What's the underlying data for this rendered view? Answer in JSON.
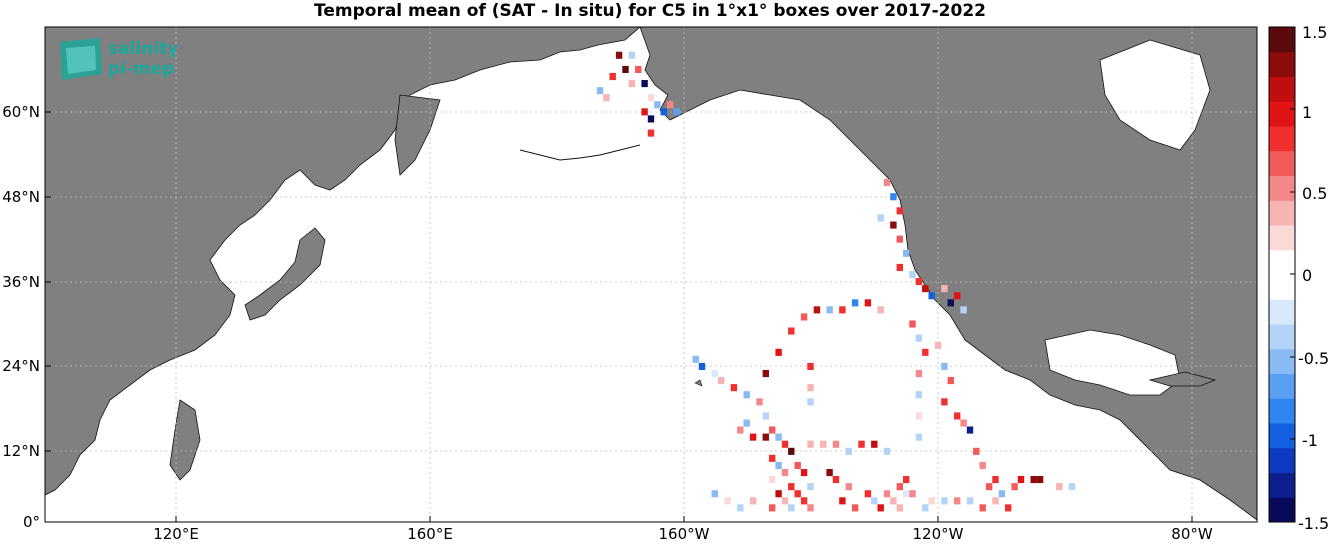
{
  "title": "Temporal mean of (SAT - In situ) for C5 in 1°x1° boxes over 2017-2022",
  "logo": {
    "line1": "salinity",
    "line2": "pi-mep"
  },
  "axes": {
    "x_ticks": [
      "120°E",
      "160°E",
      "160°W",
      "120°W",
      "80°W"
    ],
    "y_ticks": [
      "0°",
      "12°N",
      "24°N",
      "36°N",
      "48°N",
      "60°N"
    ]
  },
  "colorbar": {
    "ticks": [
      "1.5",
      "1",
      "0.5",
      "0",
      "-0.5",
      "-1",
      "-1.5"
    ],
    "range": [
      -1.5,
      1.5
    ],
    "colors": [
      "#0a0a5a",
      "#0c1f8c",
      "#0d3ac0",
      "#1460e0",
      "#2f86f0",
      "#5aa0f2",
      "#88bbf4",
      "#b3d3f8",
      "#d9e8fb",
      "#ffffff",
      "#ffffff",
      "#fbd9d9",
      "#f8b3b3",
      "#f48888",
      "#f25a5a",
      "#f02f2f",
      "#e01414",
      "#c00d0d",
      "#8c0c0c",
      "#5a0a0a"
    ]
  },
  "colors": {
    "land": "#808080",
    "ocean": "#ffffff",
    "grid": "#bbbbbb"
  },
  "chart_data": {
    "type": "heatmap",
    "title": "Temporal mean of (SAT - In situ) for C5 in 1°x1° boxes over 2017-2022",
    "lon_range": [
      100,
      -70
    ],
    "lat_range": [
      0,
      70
    ],
    "value_range": [
      -1.5,
      1.5
    ],
    "cells": [
      [
        -170,
        66,
        1.2
      ],
      [
        -168,
        66,
        -0.3
      ],
      [
        -169,
        64,
        1.4
      ],
      [
        -167,
        64,
        0.6
      ],
      [
        -171,
        63,
        0.9
      ],
      [
        -166,
        62,
        -1.5
      ],
      [
        -168,
        62,
        0.4
      ],
      [
        -173,
        61,
        -0.6
      ],
      [
        -172,
        60,
        0.3
      ],
      [
        -165,
        60,
        0.2
      ],
      [
        -164,
        59,
        -0.5
      ],
      [
        -163,
        58,
        -1.0
      ],
      [
        -166,
        58,
        1.0
      ],
      [
        -165,
        57,
        -1.4
      ],
      [
        -162,
        59,
        0.5
      ],
      [
        -161,
        58,
        -0.7
      ],
      [
        -165,
        55,
        0.8
      ],
      [
        -128,
        48,
        0.5
      ],
      [
        -127,
        46,
        -0.8
      ],
      [
        -126,
        44,
        0.9
      ],
      [
        -129,
        43,
        -0.4
      ],
      [
        -127,
        42,
        1.3
      ],
      [
        -126,
        40,
        0.6
      ],
      [
        -125,
        38,
        -0.5
      ],
      [
        -126,
        36,
        0.8
      ],
      [
        -124,
        35,
        -0.3
      ],
      [
        -123,
        34,
        0.9
      ],
      [
        -122,
        33,
        1.1
      ],
      [
        -121,
        32,
        -0.9
      ],
      [
        -119,
        33,
        0.4
      ],
      [
        -118,
        31,
        -1.4
      ],
      [
        -117,
        32,
        1.0
      ],
      [
        -116,
        30,
        -0.4
      ],
      [
        -141,
        29,
        0.7
      ],
      [
        -139,
        30,
        1.1
      ],
      [
        -137,
        30,
        -0.5
      ],
      [
        -135,
        30,
        0.9
      ],
      [
        -133,
        31,
        -0.8
      ],
      [
        -131,
        31,
        1.0
      ],
      [
        -129,
        30,
        0.3
      ],
      [
        -143,
        27,
        0.8
      ],
      [
        -145,
        24,
        1.0
      ],
      [
        -147,
        21,
        1.3
      ],
      [
        -140,
        22,
        0.9
      ],
      [
        -140,
        19,
        0.4
      ],
      [
        -140,
        17,
        -0.3
      ],
      [
        -124,
        28,
        0.6
      ],
      [
        -123,
        26,
        -0.4
      ],
      [
        -122,
        24,
        0.8
      ],
      [
        -123,
        21,
        0.5
      ],
      [
        -123,
        18,
        -0.3
      ],
      [
        -123,
        15,
        0.2
      ],
      [
        -123,
        12,
        -0.4
      ],
      [
        -120,
        25,
        0.3
      ],
      [
        -119,
        22,
        -0.5
      ],
      [
        -118,
        20,
        0.6
      ],
      [
        -119,
        17,
        0.8
      ],
      [
        -117,
        15,
        0.9
      ],
      [
        -116,
        14,
        0.5
      ],
      [
        -115,
        13,
        -1.3
      ],
      [
        -114,
        10,
        0.6
      ],
      [
        -113,
        8,
        0.5
      ],
      [
        -158,
        23,
        -0.5
      ],
      [
        -157,
        22,
        -0.9
      ],
      [
        -155,
        21,
        -0.2
      ],
      [
        -154,
        20,
        0.4
      ],
      [
        -152,
        19,
        0.8
      ],
      [
        -150,
        18,
        -0.6
      ],
      [
        -148,
        17,
        0.5
      ],
      [
        -147,
        15,
        -0.4
      ],
      [
        -146,
        13,
        0.7
      ],
      [
        -147,
        12,
        1.2
      ],
      [
        -145,
        12,
        -0.5
      ],
      [
        -144,
        11,
        0.9
      ],
      [
        -143,
        10,
        1.4
      ],
      [
        -150,
        14,
        -0.6
      ],
      [
        -151,
        13,
        0.5
      ],
      [
        -149,
        12,
        1.0
      ],
      [
        -146,
        9,
        0.8
      ],
      [
        -145,
        8,
        -0.5
      ],
      [
        -144,
        7,
        0.5
      ],
      [
        -146,
        6,
        0.2
      ],
      [
        -143,
        5,
        0.9
      ],
      [
        -145,
        4,
        1.1
      ],
      [
        -144,
        3,
        0.4
      ],
      [
        -146,
        2,
        0.7
      ],
      [
        -142,
        8,
        0.6
      ],
      [
        -141,
        7,
        1.0
      ],
      [
        -140,
        5,
        -0.3
      ],
      [
        -142,
        4,
        0.8
      ],
      [
        -141,
        3,
        0.9
      ],
      [
        -143,
        2,
        -0.4
      ],
      [
        -140,
        2,
        0.5
      ],
      [
        -140,
        11,
        0.4
      ],
      [
        -138,
        11,
        0.3
      ],
      [
        -136,
        11,
        0.5
      ],
      [
        -134,
        10,
        -0.3
      ],
      [
        -132,
        11,
        0.9
      ],
      [
        -130,
        11,
        1.1
      ],
      [
        -128,
        10,
        -0.4
      ],
      [
        -136,
        6,
        0.9
      ],
      [
        -134,
        5,
        0.5
      ],
      [
        -135,
        3,
        1.0
      ],
      [
        -133,
        2,
        0.7
      ],
      [
        -131,
        4,
        0.8
      ],
      [
        -130,
        3,
        -0.4
      ],
      [
        -128,
        4,
        0.5
      ],
      [
        -129,
        2,
        1.0
      ],
      [
        -127,
        3,
        0.4
      ],
      [
        -126,
        5,
        0.6
      ],
      [
        -125,
        4,
        -0.2
      ],
      [
        -126,
        2,
        0.3
      ],
      [
        -124,
        4,
        0.5
      ],
      [
        -125,
        6,
        0.8
      ],
      [
        -137,
        7,
        1.3
      ],
      [
        -122,
        2,
        -0.3
      ],
      [
        -121,
        3,
        0.2
      ],
      [
        -119,
        3,
        -0.4
      ],
      [
        -117,
        3,
        0.5
      ],
      [
        -115,
        3,
        -0.3
      ],
      [
        -113,
        2,
        0.6
      ],
      [
        -111,
        3,
        0.4
      ],
      [
        -109,
        2,
        0.8
      ],
      [
        -112,
        5,
        0.7
      ],
      [
        -111,
        6,
        0.9
      ],
      [
        -110,
        4,
        -0.5
      ],
      [
        -108,
        5,
        0.6
      ],
      [
        -107,
        6,
        1.0
      ],
      [
        -105,
        6,
        1.2
      ],
      [
        -104,
        6,
        1.3
      ],
      [
        -101,
        5,
        0.3
      ],
      [
        -99,
        5,
        -0.4
      ],
      [
        -155,
        4,
        -0.6
      ],
      [
        -153,
        3,
        0.2
      ],
      [
        -151,
        2,
        -0.3
      ],
      [
        -149,
        3,
        0.4
      ]
    ]
  }
}
